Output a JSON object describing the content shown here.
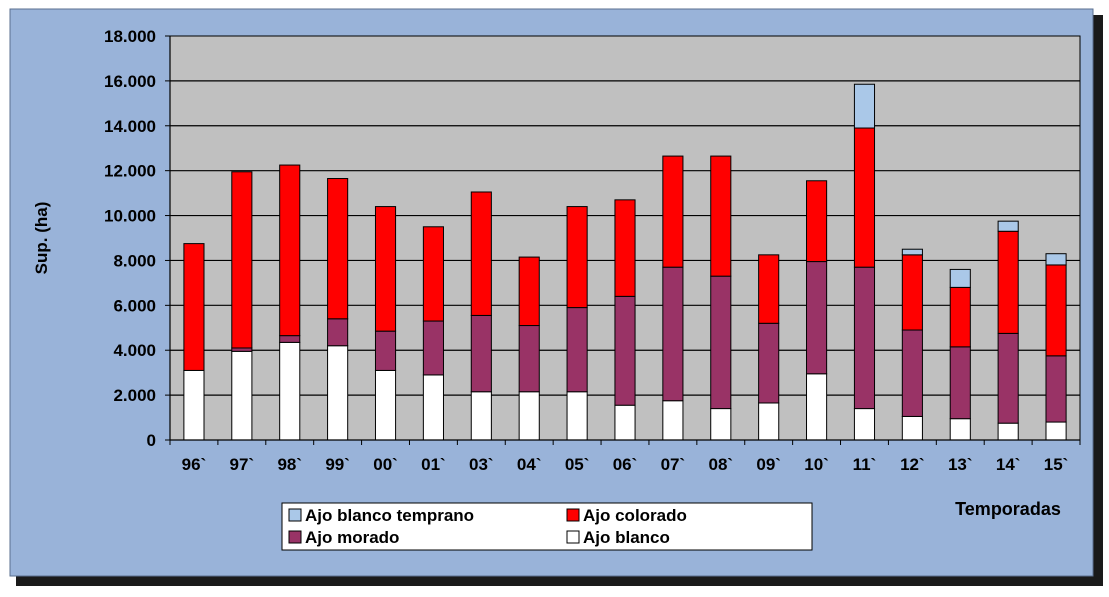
{
  "chart_data": {
    "type": "bar",
    "stacked": true,
    "title": "",
    "xlabel": "Temporadas",
    "ylabel": "Sup. (ha)",
    "ylim": [
      0,
      18000
    ],
    "yticks": [
      "0",
      "2.000",
      "4.000",
      "6.000",
      "8.000",
      "10.000",
      "12.000",
      "14.000",
      "16.000",
      "18.000"
    ],
    "grid": true,
    "legend_position": "bottom-center",
    "categories": [
      "96`",
      "97`",
      "98`",
      "99`",
      "00`",
      "01`",
      "03`",
      "04`",
      "05`",
      "06`",
      "07`",
      "08`",
      "09`",
      "10`",
      "11`",
      "12`",
      "13`",
      "14`",
      "15`"
    ],
    "series": [
      {
        "name": "Ajo blanco",
        "color": "#ffffff",
        "values": [
          3100,
          3950,
          4350,
          4200,
          3100,
          2900,
          2150,
          2150,
          2150,
          1550,
          1750,
          1400,
          1650,
          2950,
          1400,
          1050,
          950,
          750,
          800
        ]
      },
      {
        "name": "Ajo morado",
        "color": "#993366",
        "values": [
          0,
          150,
          300,
          1200,
          1750,
          2400,
          3400,
          2950,
          3750,
          4850,
          5950,
          5900,
          3550,
          5000,
          6300,
          3850,
          3200,
          4000,
          2950
        ]
      },
      {
        "name": "Ajo colorado",
        "color": "#ff0000",
        "values": [
          5650,
          7850,
          7600,
          6250,
          5550,
          4200,
          5500,
          3050,
          4500,
          4300,
          4950,
          5350,
          3050,
          3600,
          6200,
          3350,
          2650,
          4550,
          4050
        ]
      },
      {
        "name": "Ajo blanco temprano",
        "color": "#aac8e8",
        "values": [
          0,
          0,
          0,
          0,
          0,
          0,
          0,
          0,
          0,
          0,
          0,
          0,
          0,
          0,
          1950,
          250,
          800,
          450,
          500
        ]
      }
    ],
    "legend_order": [
      "Ajo blanco temprano",
      "Ajo colorado",
      "Ajo morado",
      "Ajo blanco"
    ]
  },
  "style": {
    "panel_color": "#99b3d9",
    "plot_bg": "#c0c0c0",
    "shadow_color": "#1a1a1a"
  }
}
